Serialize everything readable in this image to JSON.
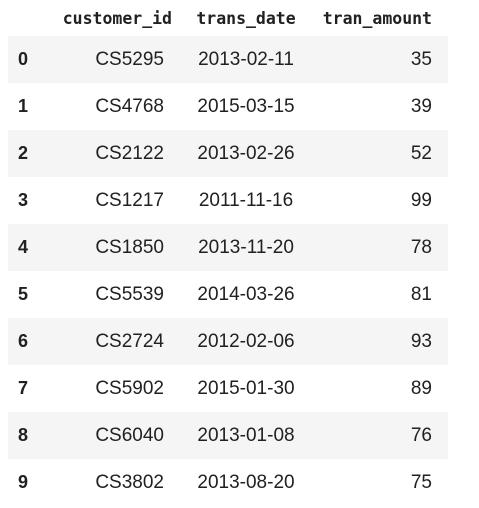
{
  "table": {
    "columns": [
      "customer_id",
      "trans_date",
      "tran_amount"
    ],
    "rows": [
      {
        "index": "0",
        "customer_id": "CS5295",
        "trans_date": "2013-02-11",
        "tran_amount": "35"
      },
      {
        "index": "1",
        "customer_id": "CS4768",
        "trans_date": "2015-03-15",
        "tran_amount": "39"
      },
      {
        "index": "2",
        "customer_id": "CS2122",
        "trans_date": "2013-02-26",
        "tran_amount": "52"
      },
      {
        "index": "3",
        "customer_id": "CS1217",
        "trans_date": "2011-11-16",
        "tran_amount": "99"
      },
      {
        "index": "4",
        "customer_id": "CS1850",
        "trans_date": "2013-11-20",
        "tran_amount": "78"
      },
      {
        "index": "5",
        "customer_id": "CS5539",
        "trans_date": "2014-03-26",
        "tran_amount": "81"
      },
      {
        "index": "6",
        "customer_id": "CS2724",
        "trans_date": "2012-02-06",
        "tran_amount": "93"
      },
      {
        "index": "7",
        "customer_id": "CS5902",
        "trans_date": "2015-01-30",
        "tran_amount": "89"
      },
      {
        "index": "8",
        "customer_id": "CS6040",
        "trans_date": "2013-01-08",
        "tran_amount": "76"
      },
      {
        "index": "9",
        "customer_id": "CS3802",
        "trans_date": "2013-08-20",
        "tran_amount": "75"
      }
    ]
  }
}
